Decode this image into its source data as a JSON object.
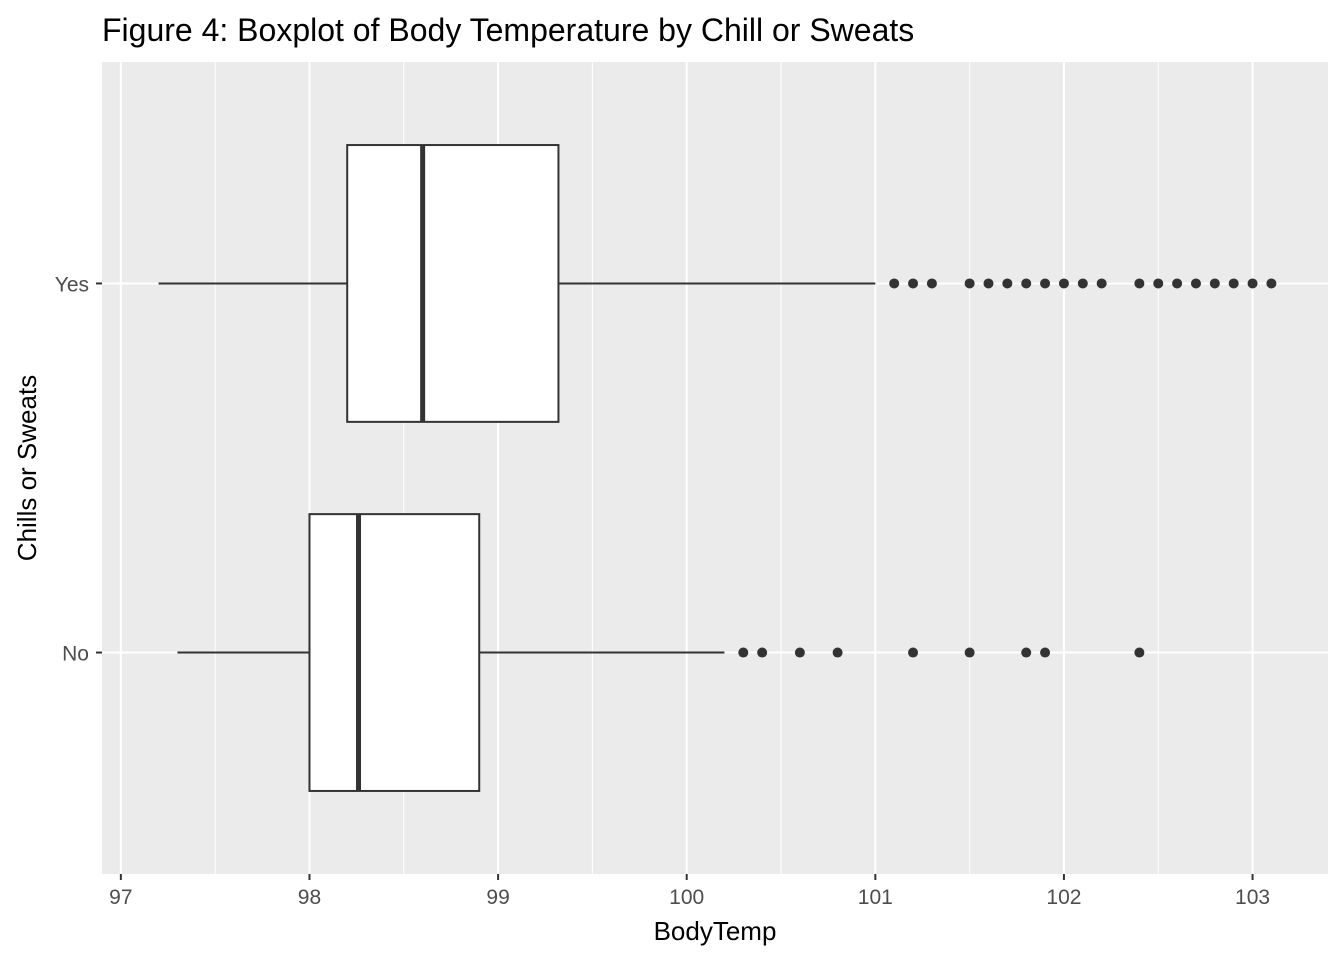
{
  "chart_data": {
    "type": "boxplot",
    "orientation": "horizontal",
    "title": "Figure 4: Boxplot of Body Temperature by Chill or Sweats",
    "xlabel": "BodyTemp",
    "ylabel": "Chills or Sweats",
    "xlim": [
      96.9,
      103.4
    ],
    "x_ticks": [
      "97",
      "98",
      "99",
      "100",
      "101",
      "102",
      "103"
    ],
    "grid": true,
    "legend": "none",
    "colors": {
      "panel": "#ebebeb",
      "grid": "#ffffff",
      "box_fill": "#ffffff",
      "box_line": "#333333",
      "outlier": "#333333"
    },
    "categories": [
      "No",
      "Yes"
    ],
    "series": [
      {
        "category": "No",
        "whisker_low": 97.3,
        "q1": 98.0,
        "median": 98.26,
        "q3": 98.9,
        "whisker_high": 100.2,
        "outliers": [
          100.3,
          100.4,
          100.6,
          100.8,
          101.2,
          101.5,
          101.8,
          101.9,
          102.4
        ]
      },
      {
        "category": "Yes",
        "whisker_low": 97.2,
        "q1": 98.2,
        "median": 98.6,
        "q3": 99.32,
        "whisker_high": 101.0,
        "outliers": [
          101.1,
          101.2,
          101.3,
          101.5,
          101.6,
          101.7,
          101.8,
          101.9,
          102.0,
          102.1,
          102.2,
          102.4,
          102.5,
          102.6,
          102.7,
          102.8,
          102.9,
          103.0,
          103.1
        ]
      }
    ]
  }
}
